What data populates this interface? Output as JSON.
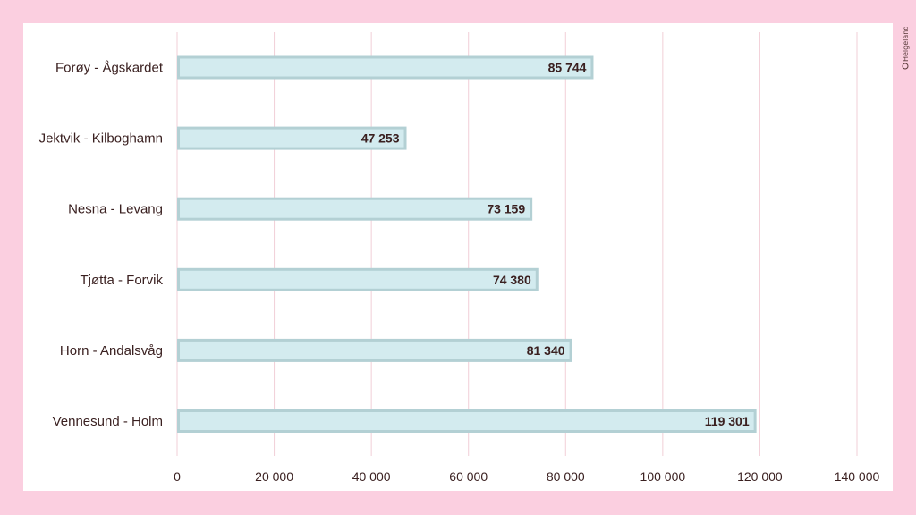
{
  "chart_data": {
    "type": "bar",
    "orientation": "horizontal",
    "title": "",
    "xlabel": "",
    "ylabel": "",
    "categories": [
      "Forøy - Ågskardet",
      "Jektvik - Kilboghamn",
      "Nesna - Levang",
      "Tjøtta - Forvik",
      "Horn - Andalsvåg",
      "Vennesund - Holm"
    ],
    "values": [
      85744,
      47253,
      73159,
      74380,
      81340,
      119301
    ],
    "value_labels": [
      "85 744",
      "47 253",
      "73 159",
      "74 380",
      "81 340",
      "119 301"
    ],
    "xlim": [
      0,
      140000
    ],
    "ticks": [
      0,
      20000,
      40000,
      60000,
      80000,
      100000,
      120000,
      140000
    ],
    "tick_labels": [
      "0",
      "20 000",
      "40 000",
      "60 000",
      "80 000",
      "100 000",
      "120 000",
      "140 000"
    ],
    "grid": true,
    "legend": "none",
    "colors": {
      "bar_fill": "#d3ebef",
      "bar_stroke": "#b3d0d4",
      "grid": "#f2cfd7",
      "text": "#3a2020",
      "background": "#fbcfe0"
    }
  },
  "logo": {
    "text": "Helgeland"
  }
}
